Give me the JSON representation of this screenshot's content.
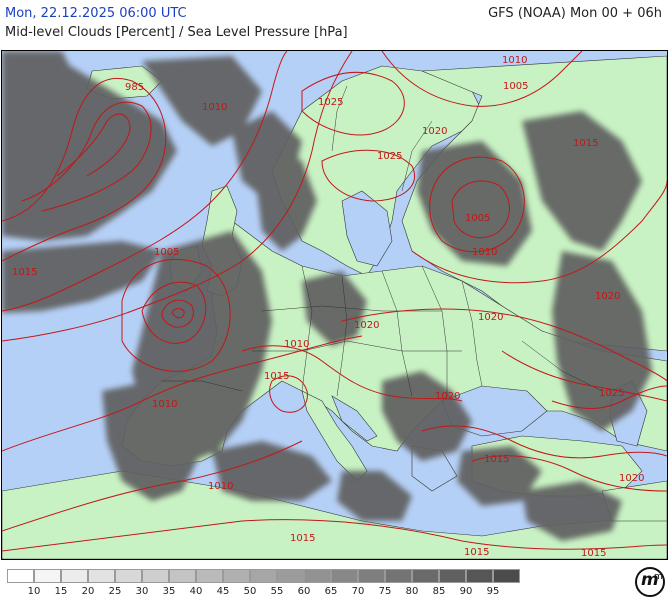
{
  "header": {
    "date_time": "Mon, 22.12.2025 06:00 UTC",
    "model_run": "GFS (NOAA) Mon 00 + 06h",
    "field": "Mid-level Clouds [Percent] / Sea Level Pressure [hPa]"
  },
  "colors": {
    "sea": "#b5d0f6",
    "land": "#c8f2c3",
    "cloud_dark": "#5e5e5e",
    "isobar": "#c21818",
    "border": "#333333"
  },
  "isobar_labels": [
    {
      "id": "iso-985",
      "text": "985"
    },
    {
      "id": "iso-1010-nw",
      "text": "1010"
    },
    {
      "id": "iso-1025-scand",
      "text": "1025"
    },
    {
      "id": "iso-1010-ne",
      "text": "1010"
    },
    {
      "id": "iso-1005-ne",
      "text": "1005"
    },
    {
      "id": "iso-1020-fin",
      "text": "1020"
    },
    {
      "id": "iso-1025-swe",
      "text": "1025"
    },
    {
      "id": "iso-1015-rus",
      "text": "1015"
    },
    {
      "id": "iso-1005-rus",
      "text": "1005"
    },
    {
      "id": "iso-1010-rus",
      "text": "1010"
    },
    {
      "id": "iso-1005-low",
      "text": "1005"
    },
    {
      "id": "iso-1015-atl",
      "text": "1015"
    },
    {
      "id": "iso-1020-e",
      "text": "1020"
    },
    {
      "id": "iso-1020-c",
      "text": "1020"
    },
    {
      "id": "iso-1020-ukr",
      "text": "1020"
    },
    {
      "id": "iso-1010-fr",
      "text": "1010"
    },
    {
      "id": "iso-1015-fr",
      "text": "1015"
    },
    {
      "id": "iso-1010-spain",
      "text": "1010"
    },
    {
      "id": "iso-1025-cauc",
      "text": "1025"
    },
    {
      "id": "iso-1020-bs",
      "text": "1020"
    },
    {
      "id": "iso-1015-gr",
      "text": "1015"
    },
    {
      "id": "iso-1020-tr",
      "text": "1020"
    },
    {
      "id": "iso-1010-med",
      "text": "1010"
    },
    {
      "id": "iso-1015-sw",
      "text": "1015"
    },
    {
      "id": "iso-1015-lib",
      "text": "1015"
    },
    {
      "id": "iso-1015-egy",
      "text": "1015"
    }
  ],
  "legend": {
    "colors": [
      "#ffffff",
      "#f5f5f5",
      "#ececec",
      "#e2e2e2",
      "#d8d8d8",
      "#cecece",
      "#c4c4c4",
      "#bababa",
      "#b0b0b0",
      "#a6a6a6",
      "#9c9c9c",
      "#929292",
      "#888888",
      "#7e7e7e",
      "#747474",
      "#6a6a6a",
      "#606060",
      "#565656",
      "#4c4c4c"
    ],
    "ticks": [
      "10",
      "15",
      "20",
      "25",
      "30",
      "35",
      "40",
      "45",
      "50",
      "55",
      "60",
      "65",
      "70",
      "75",
      "80",
      "85",
      "90",
      "95"
    ]
  },
  "logo": {
    "letter": "m",
    "superscript": "m"
  }
}
